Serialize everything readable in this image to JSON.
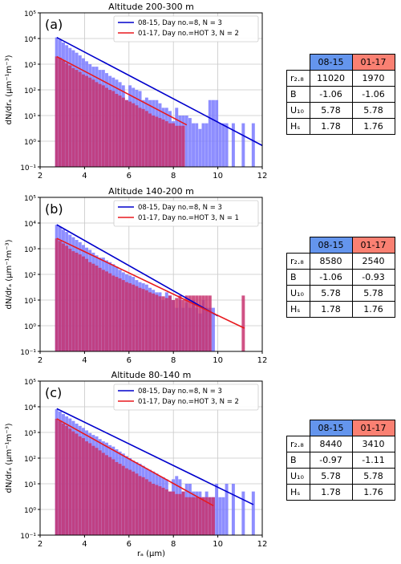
{
  "colors": {
    "bar_a": "#7a7aff",
    "bar_b": "#c8326e",
    "line_a": "#0000cc",
    "line_b": "#e8191e",
    "hdr_a": "#6495ed",
    "hdr_b": "#fa8072",
    "grid": "#c8c8c8"
  },
  "chart_data": [
    {
      "type": "bar",
      "panel_label": "(a)",
      "title": "Altitude  200-300 m",
      "ylabel": "dN/drₐ (μm⁻¹m⁻³)",
      "xlabel": "",
      "xlim": [
        2,
        12
      ],
      "ylim_log10": [
        -1,
        5
      ],
      "xticks": [
        "2",
        "4",
        "6",
        "8",
        "10",
        "12"
      ],
      "yticks": [
        "10⁻¹",
        "10⁰",
        "10¹",
        "10²",
        "10³",
        "10⁴",
        "10⁵"
      ],
      "legend": [
        "08-15, Day no.=8, N = 3",
        "01-17, Day no.=HOT 3, N = 2"
      ],
      "legend_placement": "top-right",
      "grid": true,
      "series": [
        {
          "name": "08-15, Day no.=8, N = 3",
          "style": "bar_a",
          "x": [
            2.75,
            2.9,
            3.05,
            3.2,
            3.35,
            3.5,
            3.65,
            3.8,
            3.95,
            4.1,
            4.25,
            4.4,
            4.55,
            4.7,
            4.85,
            5.0,
            5.15,
            5.3,
            5.45,
            5.6,
            5.75,
            5.9,
            6.05,
            6.2,
            6.35,
            6.5,
            6.65,
            6.8,
            6.95,
            7.1,
            7.25,
            7.4,
            7.55,
            7.7,
            7.85,
            8.0,
            8.15,
            8.3,
            8.45,
            8.6,
            8.75,
            8.9,
            9.05,
            9.2,
            9.35,
            9.5,
            9.65,
            9.8,
            9.95,
            10.1,
            10.25,
            10.4,
            10.7,
            11.15,
            11.6
          ],
          "y": [
            11000,
            9000,
            7000,
            5500,
            4300,
            3500,
            2800,
            2200,
            1700,
            1300,
            1000,
            800,
            800,
            600,
            600,
            450,
            350,
            300,
            250,
            200,
            150,
            40,
            150,
            120,
            100,
            90,
            40,
            50,
            40,
            40,
            40,
            30,
            20,
            20,
            15,
            6,
            20,
            10,
            10,
            10,
            8,
            5,
            5,
            3,
            5,
            5,
            40,
            40,
            40,
            5,
            5,
            5,
            5,
            5,
            5
          ]
        },
        {
          "name": "01-17, Day no.=HOT 3, N = 2",
          "style": "bar_b",
          "x": [
            2.75,
            2.9,
            3.05,
            3.2,
            3.35,
            3.5,
            3.65,
            3.8,
            3.95,
            4.1,
            4.25,
            4.4,
            4.55,
            4.7,
            4.85,
            5.0,
            5.15,
            5.3,
            5.45,
            5.6,
            5.75,
            5.9,
            6.05,
            6.2,
            6.35,
            6.5,
            6.65,
            6.8,
            6.95,
            7.1,
            7.25,
            7.4,
            7.55,
            7.7,
            7.85,
            8.0,
            8.15,
            8.3,
            8.45
          ],
          "y": [
            2000,
            1800,
            1400,
            1100,
            900,
            700,
            600,
            500,
            400,
            350,
            300,
            250,
            200,
            170,
            150,
            120,
            100,
            90,
            70,
            60,
            50,
            40,
            35,
            30,
            25,
            20,
            18,
            15,
            12,
            10,
            9,
            8,
            7,
            6,
            5,
            5,
            4,
            4,
            4
          ]
        },
        {
          "name": "fit 08-15",
          "style": "line_a",
          "x": [
            2.75,
            12.0
          ],
          "y": [
            11020,
            0.68
          ]
        },
        {
          "name": "fit 01-17",
          "style": "line_b",
          "x": [
            2.75,
            8.6
          ],
          "y": [
            1970,
            4.3
          ]
        }
      ],
      "table": {
        "header": [
          "08-15",
          "01-17"
        ],
        "rows": [
          {
            "label": "r₂.₈",
            "a": "11020",
            "b": "1970"
          },
          {
            "label": "B",
            "a": "-1.06",
            "b": "-1.06"
          },
          {
            "label": "U₁₀",
            "a": "5.78",
            "b": "5.78"
          },
          {
            "label": "Hₛ",
            "a": "1.78",
            "b": "1.76"
          }
        ]
      }
    },
    {
      "type": "bar",
      "panel_label": "(b)",
      "title": "Altitude  140-200 m",
      "ylabel": "dN/drₐ (μm⁻¹m⁻³)",
      "xlabel": "",
      "xlim": [
        2,
        12
      ],
      "ylim_log10": [
        -1,
        5
      ],
      "xticks": [
        "2",
        "4",
        "6",
        "8",
        "10",
        "12"
      ],
      "yticks": [
        "10⁻¹",
        "10⁰",
        "10¹",
        "10²",
        "10³",
        "10⁴",
        "10⁵"
      ],
      "legend": [
        "08-15, Day no.=8, N = 3",
        "01-17, Day no.=HOT 3, N = 1"
      ],
      "legend_placement": "top-right",
      "grid": true,
      "series": [
        {
          "name": "08-15, Day no.=8, N = 3",
          "style": "bar_a",
          "x": [
            2.75,
            2.9,
            3.05,
            3.2,
            3.35,
            3.5,
            3.65,
            3.8,
            3.95,
            4.1,
            4.25,
            4.4,
            4.55,
            4.7,
            4.85,
            5.0,
            5.15,
            5.3,
            5.45,
            5.6,
            5.75,
            5.9,
            6.05,
            6.2,
            6.35,
            6.5,
            6.65,
            6.8,
            6.95,
            7.1,
            7.25,
            7.4,
            7.55,
            7.7,
            7.85,
            8.0,
            8.15,
            8.3,
            8.45,
            8.6,
            8.75,
            8.9,
            9.05,
            9.2,
            9.35,
            9.5,
            9.65,
            9.8
          ],
          "y": [
            8500,
            7000,
            5500,
            4500,
            3500,
            2800,
            2200,
            1800,
            1400,
            1100,
            900,
            700,
            550,
            450,
            450,
            350,
            300,
            250,
            200,
            150,
            120,
            100,
            90,
            80,
            60,
            50,
            45,
            40,
            30,
            25,
            20,
            20,
            10,
            20,
            15,
            10,
            5,
            10,
            5,
            8,
            5,
            10,
            5,
            3,
            10,
            5,
            5,
            5
          ]
        },
        {
          "name": "01-17, Day no.=HOT 3, N = 1",
          "style": "bar_b",
          "x": [
            2.75,
            2.9,
            3.05,
            3.2,
            3.35,
            3.5,
            3.65,
            3.8,
            3.95,
            4.1,
            4.25,
            4.4,
            4.55,
            4.7,
            4.85,
            5.0,
            5.15,
            5.3,
            5.45,
            5.6,
            5.75,
            5.9,
            6.05,
            6.2,
            6.35,
            6.5,
            6.65,
            6.8,
            6.95,
            7.1,
            7.25,
            7.4,
            7.55,
            7.7,
            7.85,
            8.0,
            8.15,
            8.3,
            8.45,
            8.6,
            8.75,
            8.9,
            9.05,
            9.2,
            9.35,
            9.5,
            9.65,
            11.15
          ],
          "y": [
            2500,
            2000,
            1600,
            1300,
            1000,
            800,
            700,
            600,
            500,
            400,
            300,
            260,
            220,
            180,
            150,
            130,
            110,
            90,
            80,
            70,
            60,
            50,
            45,
            40,
            35,
            30,
            27,
            24,
            20,
            18,
            16,
            14,
            14,
            12,
            15,
            10,
            12,
            15,
            10,
            15,
            15,
            15,
            15,
            15,
            15,
            15,
            15,
            15
          ]
        },
        {
          "name": "fit 08-15",
          "style": "line_a",
          "x": [
            2.75,
            10.0
          ],
          "y": [
            8580,
            2.4
          ]
        },
        {
          "name": "fit 01-17",
          "style": "line_b",
          "x": [
            2.75,
            11.2
          ],
          "y": [
            2540,
            0.8
          ]
        }
      ],
      "table": {
        "header": [
          "08-15",
          "01-17"
        ],
        "rows": [
          {
            "label": "r₂.₈",
            "a": "8580",
            "b": "2540"
          },
          {
            "label": "B",
            "a": "-1.06",
            "b": "-0.93"
          },
          {
            "label": "U₁₀",
            "a": "5.78",
            "b": "5.78"
          },
          {
            "label": "Hₛ",
            "a": "1.78",
            "b": "1.76"
          }
        ]
      }
    },
    {
      "type": "bar",
      "panel_label": "(c)",
      "title": "Altitude  80-140 m",
      "ylabel": "dN/drₐ (μm⁻¹m⁻³)",
      "xlabel": "rₐ (μm)",
      "xlim": [
        2,
        12
      ],
      "ylim_log10": [
        -1,
        5
      ],
      "xticks": [
        "2",
        "4",
        "6",
        "8",
        "10",
        "12"
      ],
      "yticks": [
        "10⁻¹",
        "10⁰",
        "10¹",
        "10²",
        "10³",
        "10⁴",
        "10⁵"
      ],
      "legend": [
        "08-15, Day no.=8, N = 3",
        "01-17, Day no.=HOT 3, N = 2"
      ],
      "legend_placement": "top-right",
      "grid": true,
      "series": [
        {
          "name": "08-15, Day no.=8, N = 3",
          "style": "bar_a",
          "x": [
            2.75,
            2.9,
            3.05,
            3.2,
            3.35,
            3.5,
            3.65,
            3.8,
            3.95,
            4.1,
            4.25,
            4.4,
            4.55,
            4.7,
            4.85,
            5.0,
            5.15,
            5.3,
            5.45,
            5.6,
            5.75,
            5.9,
            6.05,
            6.2,
            6.35,
            6.5,
            6.65,
            6.8,
            6.95,
            7.1,
            7.25,
            7.4,
            7.55,
            7.7,
            7.85,
            8.0,
            8.15,
            8.3,
            8.45,
            8.6,
            8.75,
            8.9,
            9.05,
            9.2,
            9.35,
            9.5,
            9.65,
            9.8,
            9.95,
            10.1,
            10.25,
            10.4,
            10.7,
            11.15,
            11.6
          ],
          "y": [
            8000,
            6500,
            5200,
            4200,
            3500,
            2800,
            2200,
            1800,
            1500,
            1200,
            950,
            800,
            700,
            550,
            450,
            400,
            320,
            280,
            220,
            180,
            150,
            120,
            100,
            80,
            70,
            60,
            50,
            40,
            35,
            30,
            25,
            20,
            18,
            15,
            5,
            15,
            20,
            15,
            5,
            10,
            10,
            5,
            5,
            5,
            3,
            5,
            3,
            3,
            10,
            3,
            3,
            10,
            10,
            5,
            5
          ]
        },
        {
          "name": "01-17, Day no.=HOT 3, N = 2",
          "style": "bar_b",
          "x": [
            2.75,
            2.9,
            3.05,
            3.2,
            3.35,
            3.5,
            3.65,
            3.8,
            3.95,
            4.1,
            4.25,
            4.4,
            4.55,
            4.7,
            4.85,
            5.0,
            5.15,
            5.3,
            5.45,
            5.6,
            5.75,
            5.9,
            6.05,
            6.2,
            6.35,
            6.5,
            6.65,
            6.8,
            6.95,
            7.1,
            7.25,
            7.4,
            7.55,
            7.7,
            7.85,
            8.0,
            8.15,
            8.3,
            8.45,
            8.6,
            8.75,
            8.9,
            9.05,
            9.2,
            9.35,
            9.5,
            9.65,
            9.8
          ],
          "y": [
            3400,
            2800,
            2200,
            1800,
            1400,
            1100,
            900,
            700,
            600,
            450,
            380,
            300,
            250,
            200,
            160,
            130,
            110,
            90,
            70,
            60,
            50,
            40,
            35,
            30,
            25,
            20,
            18,
            15,
            12,
            10,
            9,
            8,
            7,
            6,
            5,
            5,
            4,
            4,
            5,
            3,
            3,
            3,
            3,
            3,
            3,
            3,
            3,
            3
          ]
        },
        {
          "name": "fit 08-15",
          "style": "line_a",
          "x": [
            2.75,
            11.6
          ],
          "y": [
            8440,
            1.55
          ]
        },
        {
          "name": "fit 01-17",
          "style": "line_b",
          "x": [
            2.75,
            9.8
          ],
          "y": [
            3410,
            1.4
          ]
        }
      ],
      "table": {
        "header": [
          "08-15",
          "01-17"
        ],
        "rows": [
          {
            "label": "r₂.₈",
            "a": "8440",
            "b": "3410"
          },
          {
            "label": "B",
            "a": "-0.97",
            "b": "-1.11"
          },
          {
            "label": "U₁₀",
            "a": "5.78",
            "b": "5.78"
          },
          {
            "label": "Hₛ",
            "a": "1.78",
            "b": "1.76"
          }
        ]
      }
    }
  ]
}
